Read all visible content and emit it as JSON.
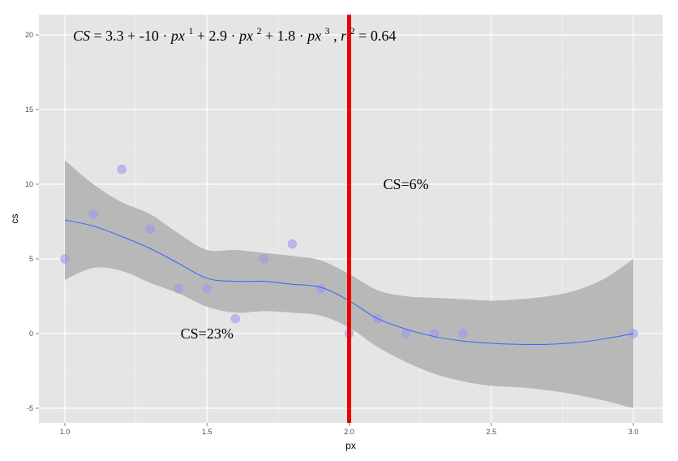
{
  "chart_data": {
    "type": "scatter",
    "title": "",
    "xlabel": "px",
    "ylabel": "cs",
    "xlim": [
      0.9,
      3.1
    ],
    "ylim": [
      -6,
      21
    ],
    "xticks": [
      1.0,
      1.5,
      2.0,
      2.5,
      3.0
    ],
    "xtick_labels": [
      "1.0",
      "1.5",
      "2.0",
      "2.5",
      "3.0"
    ],
    "yticks": [
      -5,
      0,
      5,
      10,
      15,
      20
    ],
    "ytick_labels": [
      "-5",
      "0",
      "5",
      "10",
      "15",
      "20"
    ],
    "grid": true,
    "background": "#e5e5e5",
    "points": {
      "x": [
        1.0,
        1.1,
        1.2,
        1.3,
        1.4,
        1.5,
        1.6,
        1.7,
        1.8,
        1.9,
        2.0,
        2.1,
        2.2,
        2.3,
        2.4,
        3.0
      ],
      "y": [
        5,
        8,
        11,
        7,
        3,
        3,
        1,
        5,
        6,
        3,
        0,
        1,
        0,
        0,
        0,
        0
      ],
      "color": "#9999ee"
    },
    "smooth_line": {
      "x": [
        1.0,
        1.1,
        1.2,
        1.3,
        1.4,
        1.5,
        1.6,
        1.7,
        1.8,
        1.9,
        2.0,
        2.1,
        2.2,
        2.3,
        2.4,
        2.5,
        2.6,
        2.7,
        2.8,
        2.9,
        3.0
      ],
      "y": [
        7.6,
        7.2,
        6.5,
        5.7,
        4.7,
        3.7,
        3.5,
        3.5,
        3.3,
        3.1,
        2.2,
        1.0,
        0.3,
        -0.2,
        -0.5,
        -0.65,
        -0.72,
        -0.72,
        -0.6,
        -0.35,
        0.0
      ],
      "color": "#3366ff"
    },
    "confidence_band": {
      "x": [
        1.0,
        1.1,
        1.2,
        1.3,
        1.4,
        1.5,
        1.6,
        1.7,
        1.8,
        1.9,
        2.0,
        2.1,
        2.2,
        2.3,
        2.4,
        2.5,
        2.6,
        2.7,
        2.8,
        2.9,
        3.0
      ],
      "upper": [
        11.6,
        10.0,
        8.8,
        8.0,
        6.7,
        5.6,
        5.6,
        5.4,
        5.2,
        4.9,
        4.0,
        2.9,
        2.5,
        2.4,
        2.3,
        2.2,
        2.3,
        2.5,
        2.9,
        3.7,
        5.0
      ],
      "lower": [
        3.6,
        4.4,
        4.2,
        3.4,
        2.7,
        1.8,
        1.4,
        1.5,
        1.4,
        1.2,
        0.4,
        -0.9,
        -1.9,
        -2.7,
        -3.2,
        -3.5,
        -3.6,
        -3.8,
        -4.1,
        -4.5,
        -5.0
      ],
      "color": "#b3b3b3"
    },
    "vline": {
      "x": 2.0,
      "color": "#ee0000"
    },
    "annotations": [
      {
        "text": "CS=23%",
        "x": 1.5,
        "y": 0
      },
      {
        "text": "CS=6%",
        "x": 2.2,
        "y": 10
      }
    ],
    "equation": {
      "lhs": "CS",
      "c0": "3.3",
      "c1": "-10",
      "c2": "2.9",
      "c3": "1.8",
      "var": "px",
      "e1": "1",
      "e2": "2",
      "e3": "3",
      "r_label": "r",
      "r_exp": "2",
      "r_value": "0.64"
    }
  }
}
